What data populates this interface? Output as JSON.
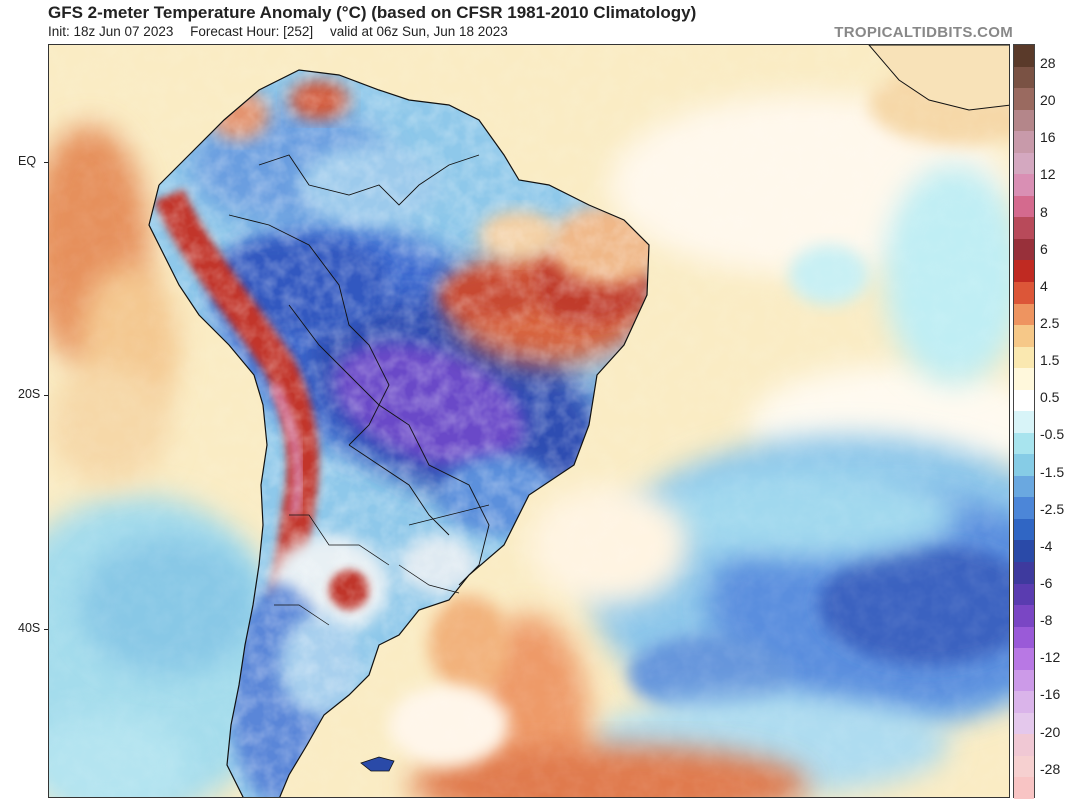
{
  "header": {
    "title": "GFS 2-meter Temperature Anomaly (°C) (based on CFSR 1981-2010 Climatology)",
    "init": "Init: 18z Jun 07 2023",
    "forecast_hour": "Forecast Hour: [252]",
    "valid": "valid at 06z Sun, Jun 18 2023",
    "brand": "TROPICALTIDBITS.COM"
  },
  "axes": {
    "lat_labels": [
      "EQ",
      "20S",
      "40S"
    ]
  },
  "colorbar": {
    "labels": [
      "28",
      "20",
      "16",
      "12",
      "8",
      "6",
      "4",
      "2.5",
      "1.5",
      "0.5",
      "-0.5",
      "-1.5",
      "-2.5",
      "-4",
      "-6",
      "-8",
      "-12",
      "-16",
      "-20",
      "-28"
    ],
    "colors": [
      "#5a3a2a",
      "#7a5244",
      "#9a6a60",
      "#b4868a",
      "#c89aaa",
      "#d4a8c0",
      "#d98fb4",
      "#d46a8e",
      "#b84a5a",
      "#98303a",
      "#c02a22",
      "#dc5638",
      "#ee9460",
      "#f6c888",
      "#fae8b0",
      "#fff8dc",
      "#ffffff",
      "#d8f4f8",
      "#a8e4ee",
      "#86cce6",
      "#6aa8e0",
      "#4c86d8",
      "#3066c4",
      "#2a4aa8",
      "#3e3a9e",
      "#5a3cb0",
      "#7a46c4",
      "#9a5ad8",
      "#b878e4",
      "#cc9ae8",
      "#dab4ea",
      "#e4c8ec",
      "#f0c8d4",
      "#f6d0d0",
      "#f8c4c4"
    ]
  },
  "legend_colors": {
    "warm_strong": "#c0342a",
    "warm_mid": "#e88a5a",
    "warm_light": "#f6dca8",
    "neutral": "#fff8e6",
    "cool_light": "#a8e4ee",
    "cool_mid": "#5a8ede",
    "cool_strong": "#2a4aa8",
    "cool_extreme": "#6a48c8",
    "land_border": "#111111"
  }
}
